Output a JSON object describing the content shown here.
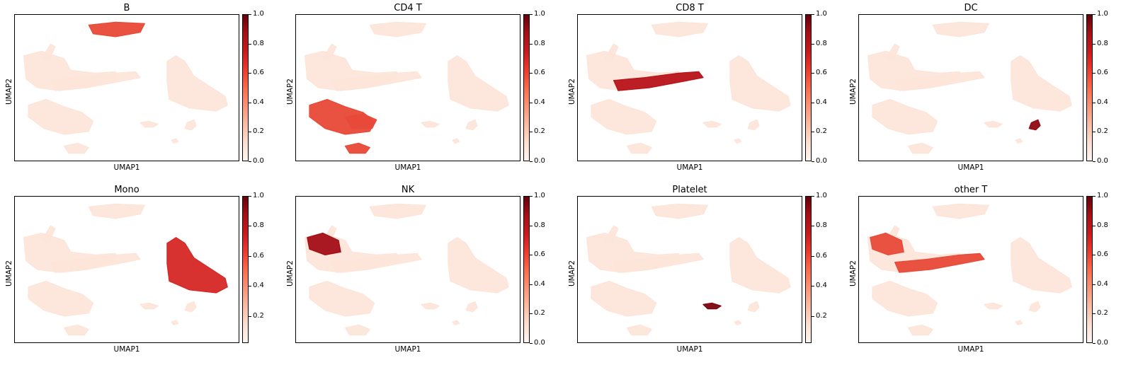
{
  "figure": {
    "cell_type_panels": [
      {
        "title": "B",
        "highlight_clusters": [
          "b_cells"
        ],
        "highlight_level": 0.6
      },
      {
        "title": "CD4 T",
        "highlight_clusters": [
          "cd4_main",
          "cd4_lower",
          "cd4_bottom"
        ],
        "highlight_level": 0.6
      },
      {
        "title": "CD8 T",
        "highlight_clusters": [
          "nk_arm"
        ],
        "highlight_level": 0.8
      },
      {
        "title": "DC",
        "highlight_clusters": [
          "dc_small"
        ],
        "highlight_level": 0.9
      },
      {
        "title": "Mono",
        "highlight_clusters": [
          "mono"
        ],
        "highlight_level": 0.7
      },
      {
        "title": "NK",
        "highlight_clusters": [
          "nk_blob"
        ],
        "highlight_level": 0.85
      },
      {
        "title": "Platelet",
        "highlight_clusters": [
          "platelet"
        ],
        "highlight_level": 0.95
      },
      {
        "title": "other T",
        "highlight_clusters": [
          "nk_blob",
          "nk_arm"
        ],
        "highlight_level": 0.6
      }
    ],
    "xlabel": "UMAP1",
    "ylabel": "UMAP2",
    "colormap": "Reds",
    "colorbar_ticks_top_row": [
      "0.0",
      "0.2",
      "0.4",
      "0.6",
      "0.8",
      "1.0"
    ],
    "colorbar_ticks_bottom_row_first": [
      "0.2",
      "0.4",
      "0.6",
      "0.8",
      "1.0"
    ],
    "colorbar_ticks_bottom_row_other": [
      "0.0",
      "0.2",
      "0.4",
      "0.6",
      "0.8",
      "1.0"
    ],
    "colors": {
      "background_points": "#fde4d8",
      "low": "#fcbba1",
      "mid": "#ef3b2c",
      "high": "#a50f15"
    }
  },
  "chart_data": {
    "type": "scatter",
    "description_of_values": "UMAP embedding colored by predicted cell-type score (0–1)",
    "panels": [
      "B",
      "CD4 T",
      "CD8 T",
      "DC",
      "Mono",
      "NK",
      "Platelet",
      "other T"
    ],
    "color_range": [
      0.0,
      1.0
    ]
  }
}
